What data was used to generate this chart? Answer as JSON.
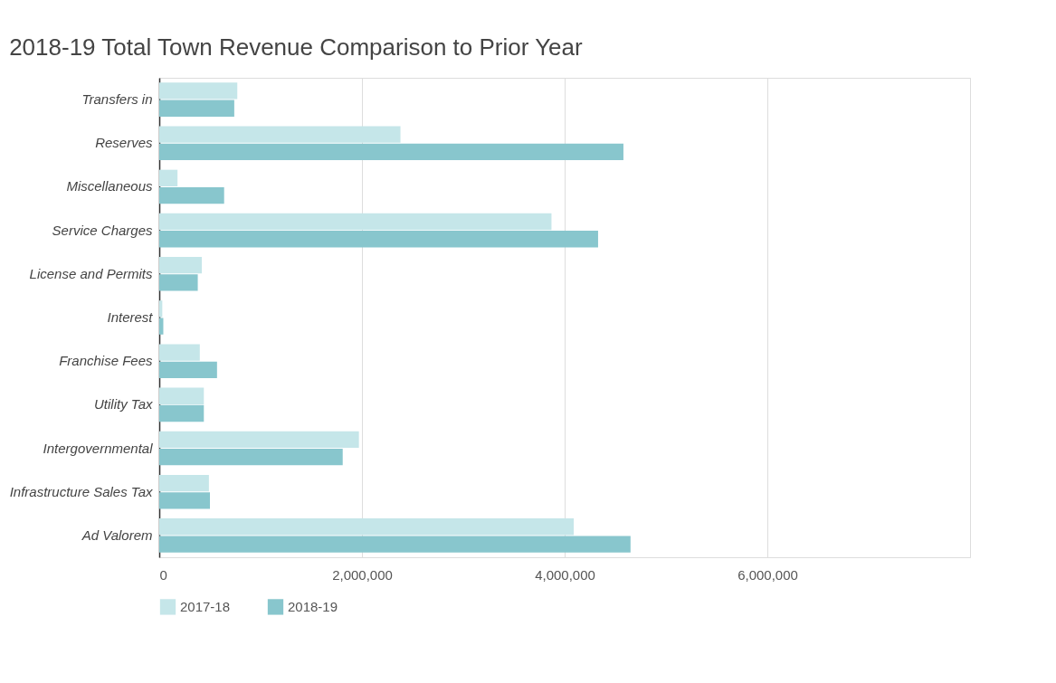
{
  "chart_data": {
    "type": "bar",
    "orientation": "horizontal",
    "title": "2018-19 Total Town Revenue Comparison to Prior Year",
    "categories": [
      "Transfers in",
      "Reserves",
      "Miscellaneous",
      "Service Charges",
      "License and Permits",
      "Interest",
      "Franchise Fees",
      "Utility Tax",
      "Intergovernmental",
      "Infrastructure Sales Tax",
      "Ad Valorem"
    ],
    "series": [
      {
        "name": "2017-18",
        "color": "#c5e6e9",
        "values": [
          770000,
          2380000,
          180000,
          3870000,
          420000,
          30000,
          400000,
          440000,
          1970000,
          490000,
          4090000
        ]
      },
      {
        "name": "2018-19",
        "color": "#88c6cd",
        "values": [
          740000,
          4580000,
          640000,
          4330000,
          380000,
          40000,
          570000,
          440000,
          1810000,
          500000,
          4650000
        ]
      }
    ],
    "xlim": [
      0,
      8000000
    ],
    "xticks": [
      0,
      {
        "value": 2000000,
        "label": "2,000,000"
      },
      {
        "value": 4000000,
        "label": "4,000,000"
      },
      {
        "value": 6000000,
        "label": "6,000,000"
      },
      {
        "value": 8000000,
        "label": null
      }
    ],
    "grid": "x",
    "legend": "bottom"
  }
}
